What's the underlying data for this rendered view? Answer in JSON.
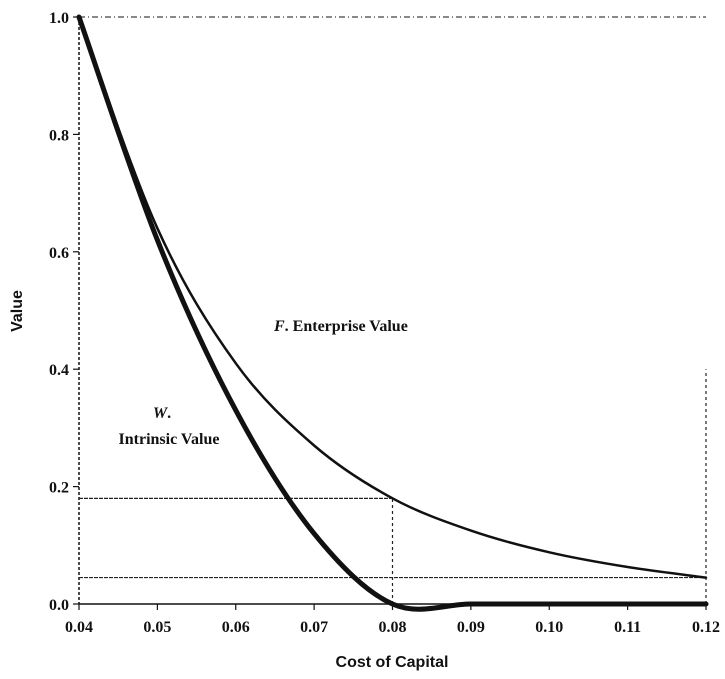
{
  "chart_data": {
    "type": "line",
    "title": "",
    "xlabel": "Cost of Capital",
    "ylabel": "Value",
    "xlim": [
      0.04,
      0.12
    ],
    "ylim": [
      0.0,
      1.0
    ],
    "x_ticks": [
      "0.04",
      "0.05",
      "0.06",
      "0.07",
      "0.08",
      "0.09",
      "0.10",
      "0.11",
      "0.12"
    ],
    "y_ticks": [
      "0.0",
      "0.2",
      "0.4",
      "0.6",
      "0.8",
      "1.0"
    ],
    "grid": false,
    "series": [
      {
        "name": "F. Enterprise Value",
        "x": [
          0.04,
          0.05,
          0.06,
          0.07,
          0.08,
          0.09,
          0.1,
          0.11,
          0.12
        ],
        "y": [
          1.0,
          0.64,
          0.41,
          0.27,
          0.18,
          0.125,
          0.088,
          0.063,
          0.045
        ]
      },
      {
        "name": "W. Intrinsic Value",
        "x": [
          0.04,
          0.05,
          0.06,
          0.07,
          0.08,
          0.09,
          0.1,
          0.11,
          0.12
        ],
        "y": [
          1.0,
          0.62,
          0.33,
          0.12,
          0.0,
          0.0,
          0.0,
          0.0,
          0.0
        ]
      }
    ],
    "reference_lines": [
      {
        "type": "horizontal",
        "y": 0.18,
        "x_from": 0.04,
        "x_to": 0.08
      },
      {
        "type": "vertical",
        "x": 0.08,
        "y_from": 0.0,
        "y_to": 0.18
      },
      {
        "type": "horizontal",
        "y": 0.045,
        "x_from": 0.04,
        "x_to": 0.12
      },
      {
        "type": "vertical",
        "x": 0.12,
        "y_from": 0.0,
        "y_to": 0.4
      }
    ],
    "annotations": {
      "enterprise": {
        "symbol": "F",
        "text": ". Enterprise Value"
      },
      "intrinsic": {
        "symbol": "W",
        "dot": ".",
        "text": "Intrinsic Value"
      }
    }
  }
}
